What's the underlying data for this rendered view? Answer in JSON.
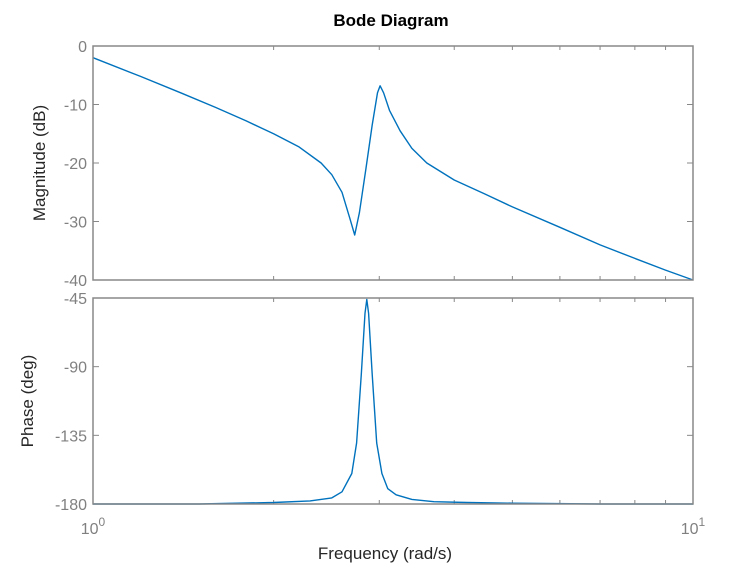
{
  "figure": {
    "title": "Bode Diagram",
    "xlabel": "Frequency  (rad/s)",
    "line_color": "#0072BD"
  },
  "chart_data": [
    {
      "type": "line",
      "panel": "magnitude",
      "title": "Bode Diagram",
      "xlabel": "Frequency  (rad/s)",
      "ylabel": "Magnitude (dB)",
      "xscale": "log",
      "xlim": [
        1,
        10
      ],
      "ylim": [
        -40,
        0
      ],
      "yticks": [
        0,
        -10,
        -20,
        -30,
        -40
      ],
      "ytick_labels": [
        "0",
        "-10",
        "-20",
        "-30",
        "-40"
      ],
      "grid": false,
      "series": [
        {
          "name": "magnitude",
          "x": [
            1.0,
            1.2,
            1.4,
            1.6,
            1.8,
            2.0,
            2.2,
            2.4,
            2.5,
            2.6,
            2.68,
            2.73,
            2.78,
            2.85,
            2.92,
            2.98,
            3.01,
            3.05,
            3.12,
            3.25,
            3.4,
            3.6,
            4.0,
            4.5,
            5.0,
            6.0,
            7.0,
            8.0,
            9.0,
            10.0
          ],
          "values": [
            -2.0,
            -5.2,
            -8.0,
            -10.5,
            -12.8,
            -15.0,
            -17.2,
            -20.0,
            -22.0,
            -25.0,
            -29.5,
            -32.3,
            -28.5,
            -21.0,
            -13.5,
            -8.0,
            -6.8,
            -8.0,
            -11.0,
            -14.5,
            -17.5,
            -20.0,
            -22.9,
            -25.3,
            -27.5,
            -31.0,
            -34.0,
            -36.3,
            -38.3,
            -40.0
          ]
        }
      ]
    },
    {
      "type": "line",
      "panel": "phase",
      "xlabel": "Frequency  (rad/s)",
      "ylabel": "Phase (deg)",
      "xscale": "log",
      "xlim": [
        1,
        10
      ],
      "ylim": [
        -180,
        -45
      ],
      "yticks": [
        -45,
        -90,
        -135,
        -180
      ],
      "ytick_labels": [
        "-45",
        "-90",
        "-135",
        "-180"
      ],
      "xtick_labels": [
        "10^0",
        "10^1"
      ],
      "grid": false,
      "series": [
        {
          "name": "phase",
          "x": [
            1.0,
            1.5,
            2.0,
            2.3,
            2.5,
            2.6,
            2.7,
            2.75,
            2.8,
            2.84,
            2.86,
            2.88,
            2.92,
            2.97,
            3.03,
            3.1,
            3.2,
            3.4,
            3.7,
            4.2,
            5.0,
            7.0,
            10.0
          ],
          "values": [
            -180,
            -180,
            -179,
            -178,
            -176,
            -172,
            -160,
            -140,
            -95,
            -55,
            -46,
            -55,
            -95,
            -140,
            -160,
            -170,
            -174,
            -177,
            -178.5,
            -179,
            -179.5,
            -180,
            -180
          ]
        }
      ]
    }
  ],
  "axes": {
    "magnitude": {
      "ylabel": "Magnitude (dB)",
      "yticks": [
        "0",
        "-10",
        "-20",
        "-30",
        "-40"
      ]
    },
    "phase": {
      "ylabel": "Phase (deg)",
      "yticks": [
        "-45",
        "-90",
        "-135",
        "-180"
      ]
    },
    "x": {
      "ticks": [
        {
          "base": "10",
          "exp": "0"
        },
        {
          "base": "10",
          "exp": "1"
        }
      ]
    }
  }
}
